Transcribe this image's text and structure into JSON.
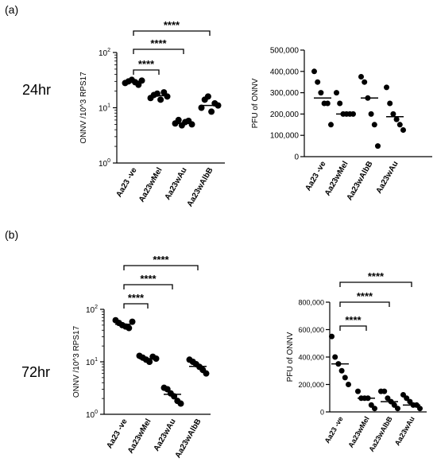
{
  "panels": {
    "a": {
      "label": "(a)",
      "time": "24hr"
    },
    "b": {
      "label": "(b)",
      "time": "72hr"
    }
  },
  "chart_data": [
    {
      "id": "a_left",
      "type": "scatter",
      "ylabel": "ONNV /10^3 RPS17",
      "yscale": "log",
      "ylim": [
        1,
        100
      ],
      "yticks": [
        1,
        10,
        100
      ],
      "categories": [
        "Aa23 -ve",
        "Aa23wMel",
        "Aa23wAu",
        "Aa23wAlbB"
      ],
      "points": [
        [
          28,
          30,
          32,
          29,
          26,
          31
        ],
        [
          15,
          17,
          18,
          14,
          19,
          16
        ],
        [
          5.2,
          6,
          4.8,
          5.5,
          5.8,
          5
        ],
        [
          10,
          14,
          16,
          8.5,
          12,
          11
        ]
      ],
      "means": [
        30,
        16.5,
        5.2,
        11
      ],
      "significance": [
        {
          "from": 0,
          "to": 1,
          "label": "****"
        },
        {
          "from": 0,
          "to": 2,
          "label": "****"
        },
        {
          "from": 0,
          "to": 3,
          "label": "****"
        }
      ]
    },
    {
      "id": "a_right",
      "type": "scatter",
      "ylabel": "PFU of ONNV",
      "yscale": "linear",
      "ylim": [
        0,
        500000
      ],
      "yticks": [
        0,
        100000,
        200000,
        300000,
        400000,
        500000
      ],
      "ytick_labels": [
        "0",
        "100,000",
        "200,000",
        "300,000",
        "400,000",
        "500,000"
      ],
      "categories": [
        "Aa23 -ve",
        "Aa23wMel",
        "Aa23wAlbB",
        "Aa23wAu"
      ],
      "points": [
        [
          400000,
          350000,
          300000,
          250000,
          250000,
          150000
        ],
        [
          300000,
          250000,
          200000,
          200000,
          200000,
          200000
        ],
        [
          375000,
          350000,
          275000,
          200000,
          150000,
          50000
        ],
        [
          325000,
          250000,
          200000,
          175000,
          150000,
          125000
        ]
      ],
      "means": [
        275000,
        200000,
        275000,
        187500
      ],
      "significance": []
    },
    {
      "id": "b_left",
      "type": "scatter",
      "ylabel": "ONNV /10^3 RPS17",
      "yscale": "log",
      "ylim": [
        1,
        100
      ],
      "yticks": [
        1,
        10,
        100
      ],
      "categories": [
        "Aa23 -ve",
        "Aa23wMel",
        "Aa23wAu",
        "Aa23wAlbB"
      ],
      "points": [
        [
          62,
          55,
          50,
          47,
          44,
          58
        ],
        [
          13,
          12,
          11,
          10,
          12.5,
          11.5
        ],
        [
          3.2,
          3.0,
          2.5,
          2.2,
          1.8,
          1.6
        ],
        [
          11,
          10,
          9,
          8,
          7,
          6
        ]
      ],
      "means": [
        52,
        11.5,
        2.4,
        8.2
      ],
      "significance": [
        {
          "from": 0,
          "to": 1,
          "label": "****"
        },
        {
          "from": 0,
          "to": 2,
          "label": "****"
        },
        {
          "from": 0,
          "to": 3,
          "label": "****"
        }
      ]
    },
    {
      "id": "b_right",
      "type": "scatter",
      "ylabel": "PFU of ONNV",
      "yscale": "linear",
      "ylim": [
        0,
        800000
      ],
      "yticks": [
        0,
        200000,
        400000,
        600000,
        800000
      ],
      "ytick_labels": [
        "0",
        "200,000",
        "400,000",
        "600,000",
        "800,000"
      ],
      "categories": [
        "Aa23 -ve",
        "Aa23wMel",
        "Aa23wAlbB",
        "Aa23wAu"
      ],
      "points": [
        [
          550000,
          400000,
          350000,
          300000,
          250000,
          200000
        ],
        [
          150000,
          100000,
          100000,
          100000,
          50000,
          25000
        ],
        [
          150000,
          150000,
          100000,
          75000,
          50000,
          25000
        ],
        [
          125000,
          100000,
          75000,
          50000,
          50000,
          25000
        ]
      ],
      "means": [
        350000,
        100000,
        75000,
        50000
      ],
      "significance": [
        {
          "from": 0,
          "to": 1,
          "label": "****"
        },
        {
          "from": 0,
          "to": 2,
          "label": "****"
        },
        {
          "from": 0,
          "to": 3,
          "label": "****"
        }
      ]
    }
  ]
}
